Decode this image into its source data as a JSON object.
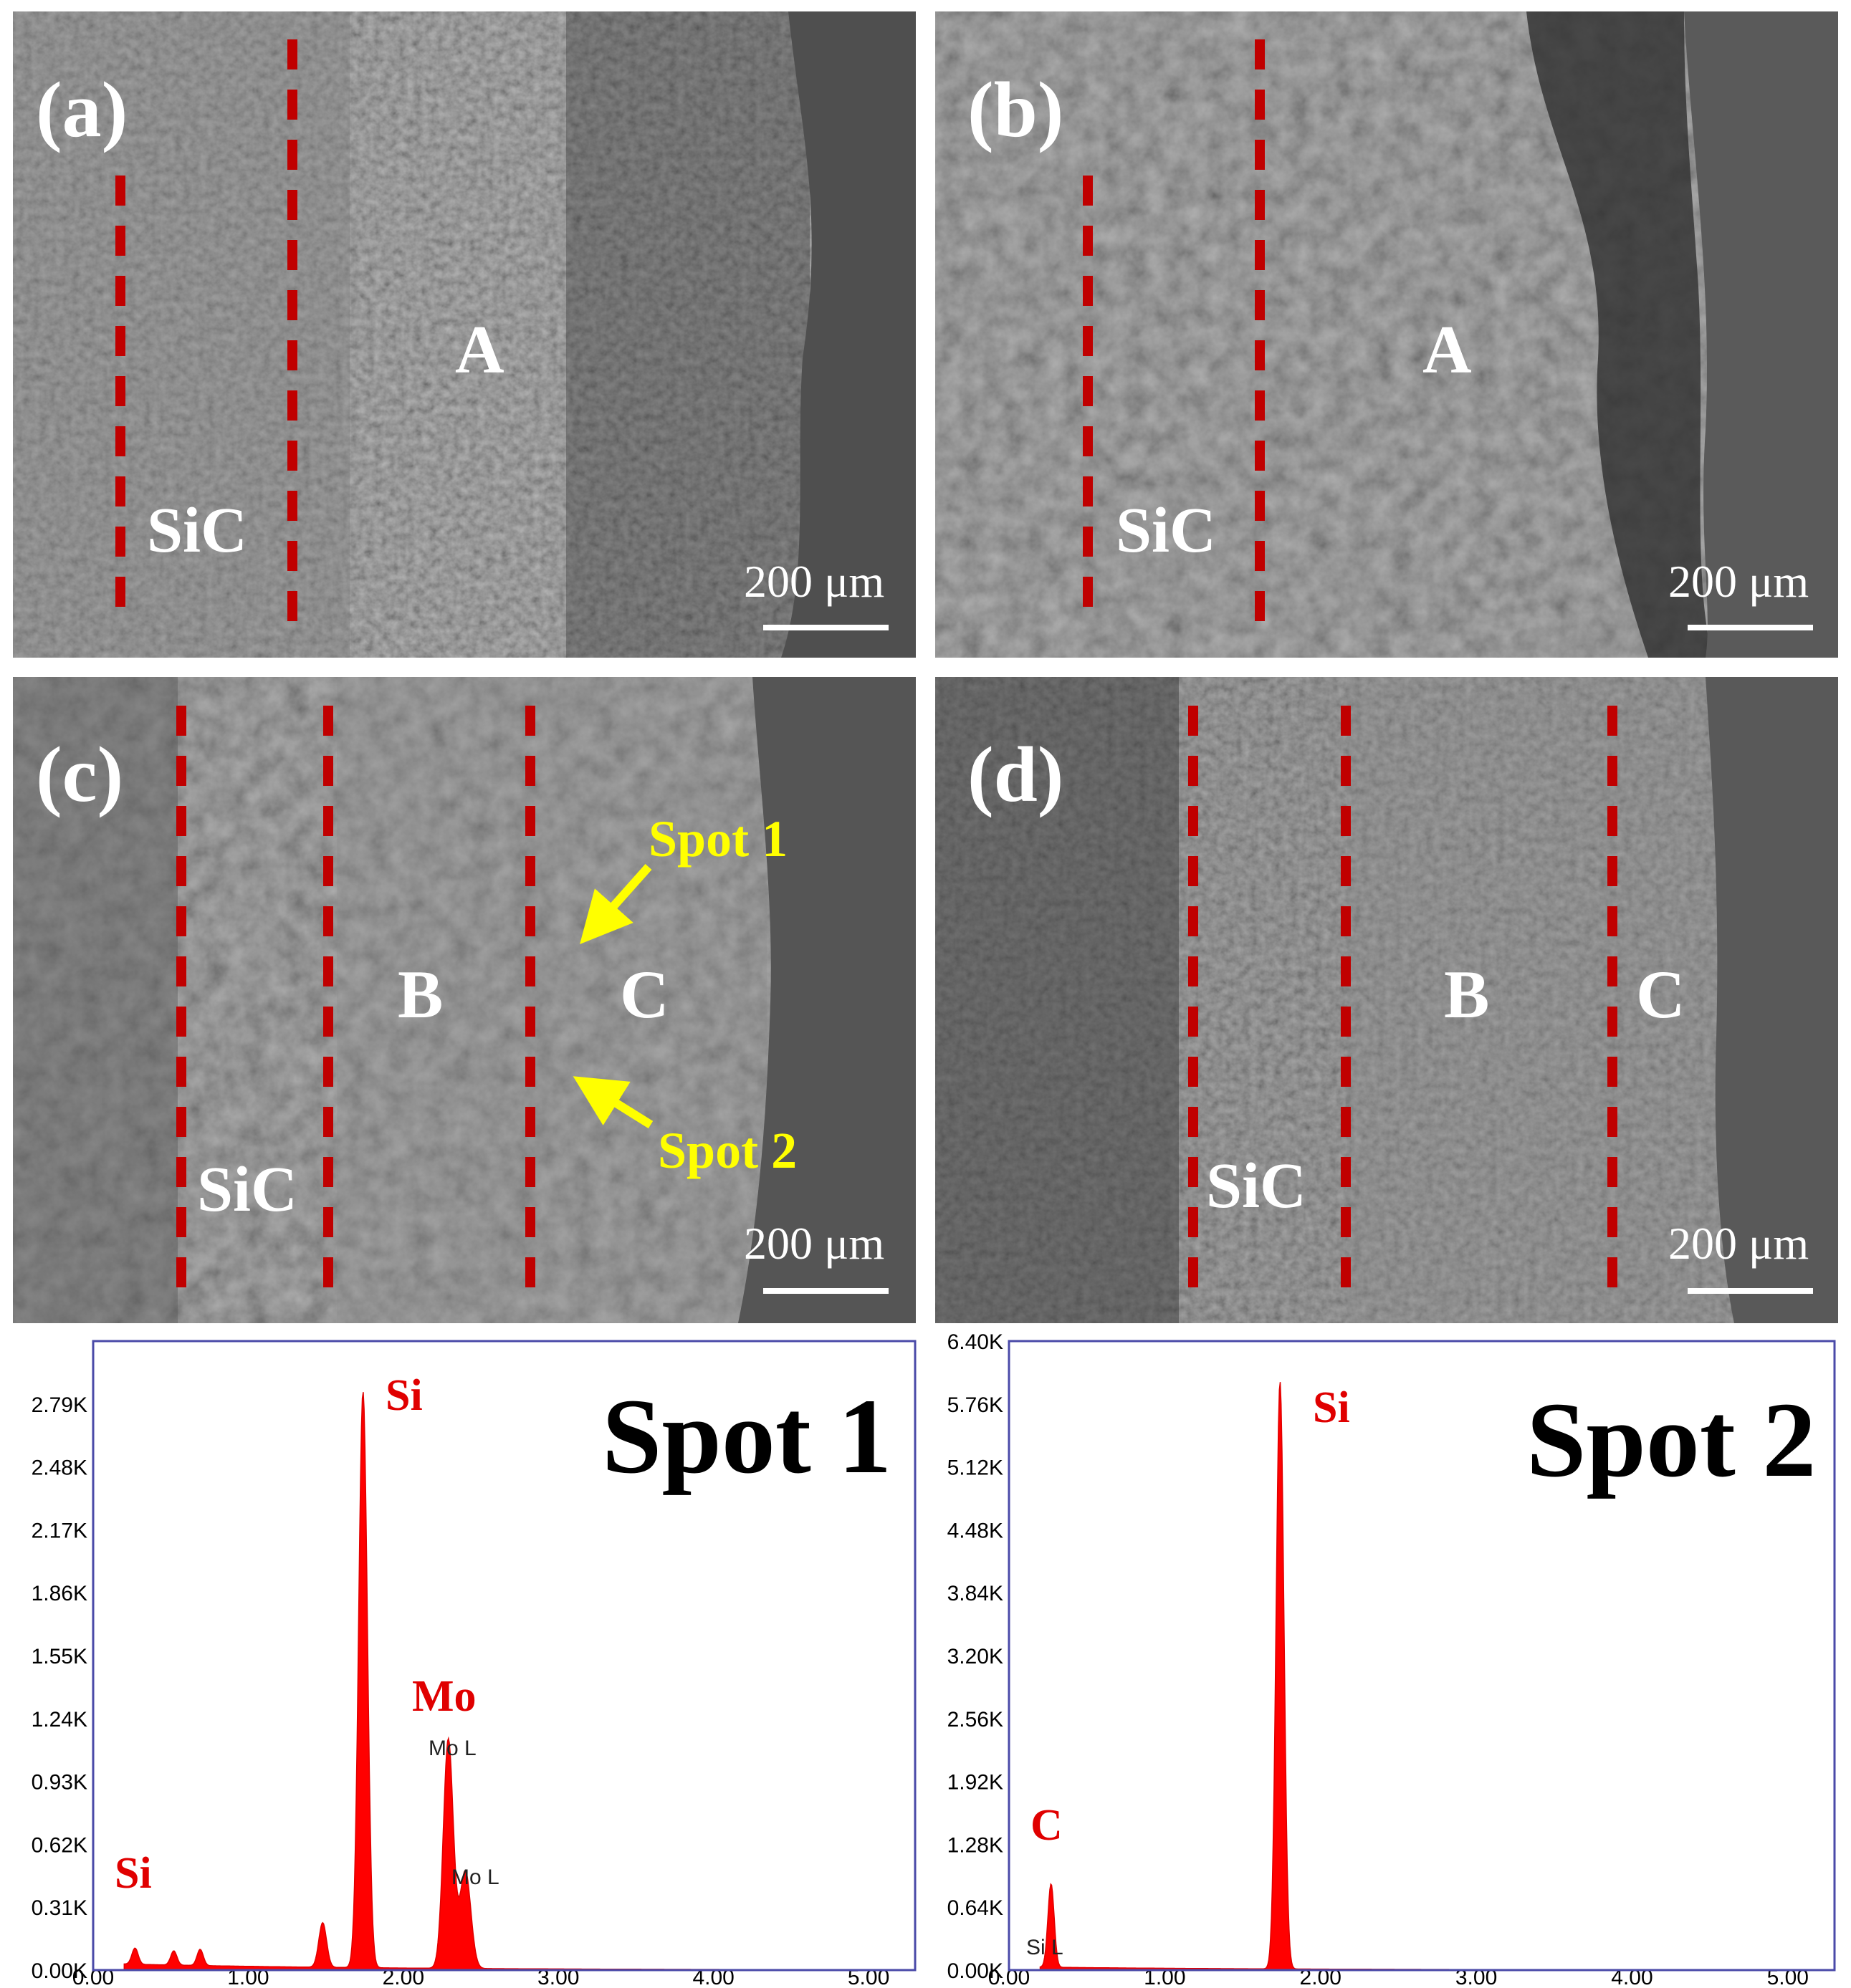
{
  "figure": {
    "panels": [
      {
        "id": "a",
        "label": "(a)",
        "regions": [
          "A"
        ],
        "sic_label": "SiC",
        "scale_bar": "200 μm"
      },
      {
        "id": "b",
        "label": "(b)",
        "regions": [
          "A"
        ],
        "sic_label": "SiC",
        "scale_bar": "200 μm"
      },
      {
        "id": "c",
        "label": "(c)",
        "regions": [
          "B",
          "C"
        ],
        "sic_label": "SiC",
        "scale_bar": "200 μm",
        "spots": [
          "Spot 1",
          "Spot 2"
        ]
      },
      {
        "id": "d",
        "label": "(d)",
        "regions": [
          "B",
          "C"
        ],
        "sic_label": "SiC",
        "scale_bar": "200 μm"
      }
    ],
    "colors": {
      "dashed_line": "#c00000",
      "spot_arrow": "#ffff00",
      "element_label": "#e00000",
      "spectrum_fill": "#ff0000",
      "axis": "#4a4aa8"
    }
  },
  "chart_data": [
    {
      "type": "area",
      "title": "Spot 1",
      "xlabel": "",
      "ylabel": "",
      "xlim": [
        0,
        5.3
      ],
      "ylim": [
        0,
        3.1
      ],
      "x_ticks": [
        "0.00",
        "1.00",
        "2.00",
        "3.00",
        "4.00",
        "5.00"
      ],
      "y_ticks": [
        "0.00K",
        "0.31K",
        "0.62K",
        "0.93K",
        "1.24K",
        "1.55K",
        "1.86K",
        "2.17K",
        "2.48K",
        "2.79K"
      ],
      "peaks": [
        {
          "x": 0.27,
          "y": 0.08,
          "width": 0.02
        },
        {
          "x": 0.52,
          "y": 0.07,
          "width": 0.02
        },
        {
          "x": 0.69,
          "y": 0.08,
          "width": 0.02
        },
        {
          "x": 1.48,
          "y": 0.22,
          "width": 0.025
        },
        {
          "x": 1.74,
          "y": 2.84,
          "width": 0.028
        },
        {
          "x": 2.29,
          "y": 1.13,
          "width": 0.032
        },
        {
          "x": 2.4,
          "y": 0.48,
          "width": 0.035
        }
      ],
      "baseline": 0.03,
      "element_labels": [
        "Si",
        "Mo",
        "Si"
      ],
      "peak_labels": [
        "Mo L",
        "Mo L"
      ]
    },
    {
      "type": "area",
      "title": "Spot 2",
      "xlabel": "",
      "ylabel": "",
      "xlim": [
        0,
        5.3
      ],
      "ylim": [
        0,
        6.4
      ],
      "x_ticks": [
        "0.00",
        "1.00",
        "2.00",
        "3.00",
        "4.00",
        "5.00"
      ],
      "y_ticks": [
        "0.00K",
        "0.64K",
        "1.28K",
        "1.92K",
        "2.56K",
        "3.20K",
        "3.84K",
        "4.48K",
        "5.12K",
        "5.76K",
        "6.40K"
      ],
      "peaks": [
        {
          "x": 0.27,
          "y": 0.85,
          "width": 0.02
        },
        {
          "x": 1.74,
          "y": 5.98,
          "width": 0.025
        },
        {
          "x": 0.08,
          "y": 0.05,
          "width": 0.03
        }
      ],
      "baseline": 0.03,
      "element_labels": [
        "Si",
        "C"
      ],
      "peak_labels": [
        "Si L"
      ]
    }
  ]
}
